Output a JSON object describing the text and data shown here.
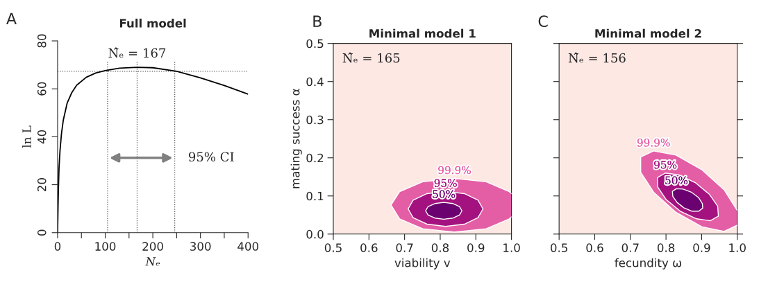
{
  "chart_data": [
    {
      "type": "line",
      "title": "Full model",
      "xlabel": "Nₑ",
      "ylabel": "ln L",
      "x": [
        0,
        1,
        2,
        3,
        5,
        8,
        12,
        20,
        30,
        40,
        60,
        80,
        100,
        130,
        167,
        200,
        250,
        300,
        350,
        400
      ],
      "series": [
        {
          "color": "#000000",
          "values": [
            0,
            12,
            20,
            27,
            34,
            41,
            47,
            54,
            58.5,
            61.5,
            64.8,
            66.6,
            67.6,
            68.6,
            69,
            68.8,
            67.3,
            64.6,
            61.4,
            57.8
          ]
        }
      ],
      "xlim": [
        0,
        400
      ],
      "ylim": [
        0,
        80
      ],
      "xticks": [
        0,
        {
          "value": 50,
          "label": null
        },
        100,
        {
          "value": 150,
          "label": null
        },
        200,
        {
          "value": 250,
          "label": null
        },
        300,
        {
          "value": 350,
          "label": null
        },
        400
      ],
      "yticks": [
        0,
        20,
        40,
        60,
        80
      ],
      "ref_lines": [
        {
          "axis": "y",
          "value": 67.3,
          "line_style": "dotted",
          "color": "#555555"
        },
        {
          "axis": "x",
          "value": 105,
          "line_style": "dotted",
          "color": "#555555"
        },
        {
          "axis": "x",
          "value": 167,
          "label": "N̂ₑ = 167",
          "line_style": "dotted",
          "color": "#555555"
        },
        {
          "axis": "x",
          "value": 246,
          "line_style": "dotted",
          "color": "#555555"
        }
      ],
      "annotations": [
        "A",
        "95% CI"
      ],
      "grid": false,
      "legend": false,
      "line_style": "solid",
      "marker": "none"
    },
    {
      "type": "line",
      "title": "Minimal model 1",
      "xlabel": "viability v",
      "ylabel": "mating success α",
      "series": [
        {
          "name": "50%",
          "type": "area",
          "color": "#6b0070",
          "x": [
            0.861,
            0.854,
            0.836,
            0.81,
            0.785,
            0.766,
            0.759,
            0.766,
            0.785,
            0.81,
            0.836,
            0.854,
            0.861
          ],
          "values": [
            0.061,
            0.072,
            0.08,
            0.083,
            0.08,
            0.072,
            0.061,
            0.05,
            0.042,
            0.039,
            0.042,
            0.05,
            0.061
          ]
        },
        {
          "name": "95%",
          "type": "area",
          "color": "#a3127f",
          "x": [
            0.92,
            0.906,
            0.868,
            0.815,
            0.763,
            0.724,
            0.71,
            0.724,
            0.763,
            0.815,
            0.868,
            0.906,
            0.92
          ],
          "values": [
            0.066,
            0.089,
            0.106,
            0.112,
            0.106,
            0.089,
            0.066,
            0.043,
            0.026,
            0.02,
            0.026,
            0.043,
            0.066
          ]
        },
        {
          "name": "99.9%",
          "type": "area",
          "color": "#e45ea6",
          "x": [
            1.0,
            0.994,
            0.929,
            0.84,
            0.751,
            0.686,
            0.662,
            0.686,
            0.751,
            0.84,
            0.929,
            0.994,
            1.0
          ],
          "values": [
            0.045,
            0.04,
            0.014,
            0.005,
            0.014,
            0.04,
            0.076,
            0.111,
            0.137,
            0.146,
            0.137,
            0.111,
            0.106
          ]
        }
      ],
      "xlim": [
        0.5,
        1.0
      ],
      "ylim": [
        0,
        0.5
      ],
      "xticks": [
        0.5,
        0.6,
        0.7,
        0.8,
        0.9,
        {
          "value": 1.0,
          "label": "1.0"
        }
      ],
      "yticks": [
        {
          "value": 0.0,
          "label": "0.0"
        },
        0.1,
        0.2,
        0.3,
        0.4,
        0.5
      ],
      "annotations": [
        "B",
        "N̂ₑ = 165"
      ],
      "grid": false,
      "legend": false,
      "line_style": "solid",
      "marker": "none"
    },
    {
      "type": "line",
      "title": "Minimal model 2",
      "xlabel": "fecundity ω",
      "series": [
        {
          "name": "50%",
          "type": "area",
          "color": "#6b0070",
          "x": [
            0.903,
            0.892,
            0.873,
            0.85,
            0.831,
            0.819,
            0.818,
            0.829,
            0.848,
            0.871,
            0.891,
            0.902,
            0.903
          ],
          "values": [
            0.068,
            0.06,
            0.06,
            0.069,
            0.083,
            0.099,
            0.112,
            0.119,
            0.118,
            0.11,
            0.096,
            0.08,
            0.068
          ]
        },
        {
          "name": "95%",
          "type": "area",
          "color": "#a3127f",
          "x": [
            0.947,
            0.924,
            0.886,
            0.84,
            0.8,
            0.777,
            0.776,
            0.798,
            0.837,
            0.882,
            0.922,
            0.945,
            0.947
          ],
          "values": [
            0.047,
            0.035,
            0.04,
            0.06,
            0.091,
            0.123,
            0.148,
            0.16,
            0.155,
            0.135,
            0.104,
            0.073,
            0.047
          ]
        },
        {
          "name": "99.9%",
          "type": "area",
          "color": "#e45ea6",
          "x": [
            0.999,
            0.963,
            0.901,
            0.828,
            0.766,
            0.729,
            0.729,
            0.765,
            0.828,
            0.9,
            0.963,
            0.999
          ],
          "values": [
            0.023,
            0.007,
            0.019,
            0.057,
            0.109,
            0.162,
            0.202,
            0.218,
            0.207,
            0.169,
            0.116,
            0.063
          ]
        }
      ],
      "xlim": [
        0.5,
        1.0
      ],
      "ylim": [
        0,
        0.5
      ],
      "xticks": [
        0.5,
        0.6,
        0.7,
        0.8,
        0.9,
        {
          "value": 1.0,
          "label": "1.0"
        }
      ],
      "yticks": [
        0.0,
        0.1,
        0.2,
        0.3,
        0.4,
        0.5
      ],
      "tick_labels": "x",
      "annotations": [
        "C",
        "N̂ₑ = 156"
      ],
      "grid": false,
      "legend": false,
      "line_style": "solid",
      "marker": "none"
    }
  ]
}
